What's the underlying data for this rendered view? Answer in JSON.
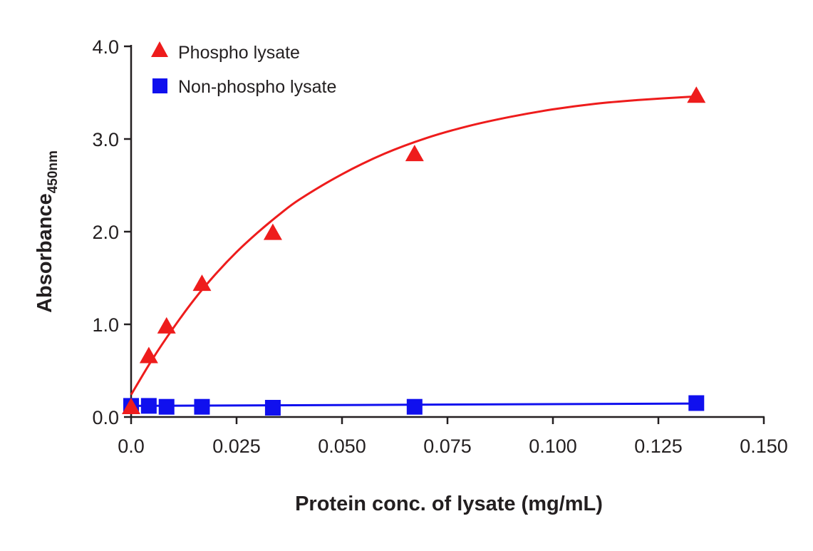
{
  "chart_data": {
    "type": "scatter",
    "title": "",
    "xlabel": "Protein conc. of lysate (mg/mL)",
    "ylabel": "Absorbance",
    "ylabel_subscript": "450nm",
    "xlim": [
      0,
      0.15
    ],
    "ylim": [
      0,
      4.0
    ],
    "xticks": [
      "0.0",
      "0.025",
      "0.050",
      "0.075",
      "0.100",
      "0.125",
      "0.150"
    ],
    "xtick_values": [
      0,
      0.025,
      0.05,
      0.075,
      0.1,
      0.125,
      0.15
    ],
    "yticks": [
      "0.0",
      "1.0",
      "2.0",
      "3.0",
      "4.0"
    ],
    "ytick_values": [
      0,
      1,
      2,
      3,
      4
    ],
    "grid": false,
    "legend_position": "top-left",
    "series": [
      {
        "name": "Phospho lysate",
        "color": "#ee1c1c",
        "marker": "triangle",
        "x": [
          0.0,
          0.0042,
          0.0084,
          0.0168,
          0.0336,
          0.0672,
          0.134
        ],
        "y": [
          0.1,
          0.65,
          0.97,
          1.43,
          1.98,
          2.83,
          3.46
        ],
        "fit": "curve"
      },
      {
        "name": "Non-phospho lysate",
        "color": "#1010ee",
        "marker": "square",
        "x": [
          0.0,
          0.0042,
          0.0084,
          0.0168,
          0.0336,
          0.0672,
          0.134
        ],
        "y": [
          0.12,
          0.12,
          0.11,
          0.11,
          0.1,
          0.11,
          0.15
        ],
        "fit": "line"
      }
    ],
    "fit_curves": [
      {
        "series": "Phospho lysate",
        "x": [
          0,
          0.005,
          0.01,
          0.015,
          0.02,
          0.025,
          0.03,
          0.035,
          0.04,
          0.05,
          0.06,
          0.07,
          0.08,
          0.09,
          0.1,
          0.11,
          0.12,
          0.134
        ],
        "y": [
          0.24,
          0.62,
          0.96,
          1.27,
          1.54,
          1.78,
          1.99,
          2.18,
          2.35,
          2.62,
          2.84,
          3.01,
          3.14,
          3.24,
          3.32,
          3.38,
          3.42,
          3.46
        ]
      },
      {
        "series": "Non-phospho lysate",
        "x": [
          0,
          0.134
        ],
        "y": [
          0.12,
          0.145
        ]
      }
    ]
  }
}
